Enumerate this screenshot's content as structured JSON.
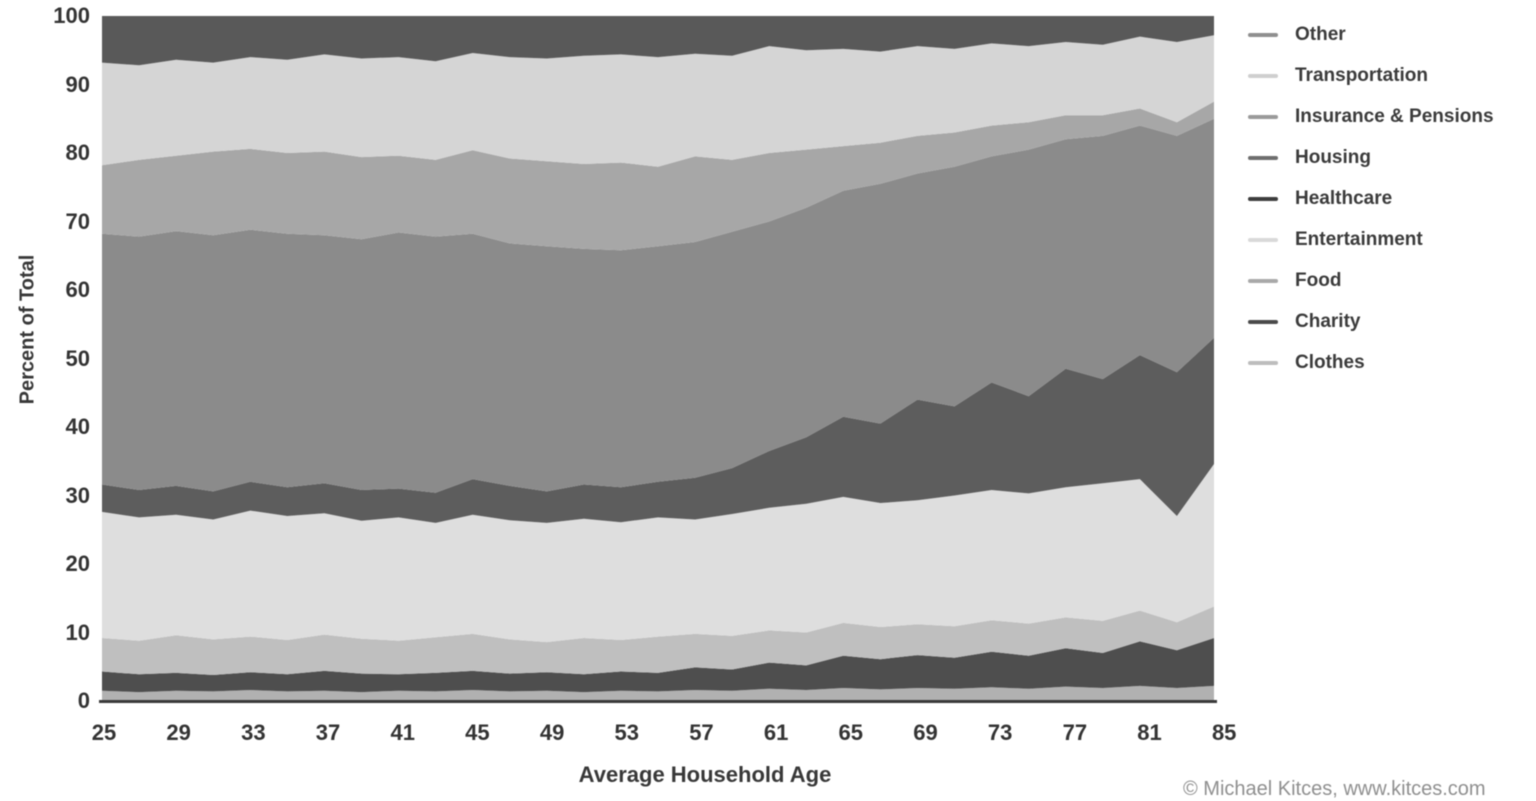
{
  "watermark": "© Michael Kitces, www.kitces.com",
  "chart_data": {
    "type": "area",
    "stacked": true,
    "title": "",
    "xlabel": "Average Household Age",
    "ylabel": "Percent of Total",
    "grid": false,
    "legend_position": "right-outside",
    "ylim": [
      0,
      100
    ],
    "xlim": [
      25,
      85
    ],
    "y_ticks": [
      0,
      10,
      20,
      30,
      40,
      50,
      60,
      70,
      80,
      90,
      100
    ],
    "x_ticks": [
      25,
      29,
      33,
      37,
      41,
      45,
      49,
      53,
      57,
      61,
      65,
      69,
      73,
      77,
      81,
      85
    ],
    "x": [
      25,
      27,
      29,
      31,
      33,
      35,
      37,
      39,
      41,
      43,
      45,
      47,
      49,
      51,
      53,
      55,
      57,
      59,
      61,
      63,
      65,
      67,
      69,
      71,
      73,
      75,
      77,
      79,
      81,
      83,
      85
    ],
    "stack_order_note": "series listed top-of-stack first (legend order); stacking drawn bottom-up in reverse order",
    "series": [
      {
        "name": "Other",
        "color": "#595959",
        "legend_color": "#8f8f8f",
        "values": [
          6.8,
          7.2,
          6.4,
          6.8,
          6.0,
          6.4,
          5.6,
          6.2,
          6.0,
          6.6,
          5.4,
          6.0,
          6.2,
          5.8,
          5.6,
          6.0,
          5.5,
          5.8,
          4.4,
          5.0,
          4.8,
          5.2,
          4.4,
          4.8,
          4.0,
          4.4,
          3.8,
          4.2,
          3.0,
          3.8,
          2.8
        ]
      },
      {
        "name": "Transportation",
        "color": "#d5d5d5",
        "legend_color": "#cfcfcf",
        "values": [
          15.0,
          13.8,
          14.0,
          13.0,
          13.4,
          13.6,
          14.2,
          14.4,
          14.4,
          14.4,
          14.2,
          14.8,
          15.0,
          15.8,
          15.8,
          16.0,
          15.0,
          15.2,
          15.6,
          14.5,
          14.2,
          13.3,
          13.1,
          12.2,
          12.0,
          11.1,
          10.7,
          10.3,
          10.5,
          11.7,
          9.7
        ]
      },
      {
        "name": "Insurance & Pensions",
        "color": "#a7a7a7",
        "legend_color": "#9a9a9a",
        "values": [
          10.0,
          11.2,
          11.0,
          12.2,
          11.8,
          11.8,
          12.2,
          12.0,
          11.2,
          11.2,
          12.2,
          12.4,
          12.4,
          12.4,
          12.8,
          11.6,
          12.5,
          10.5,
          10.0,
          8.5,
          6.5,
          6.0,
          5.5,
          5.0,
          4.5,
          4.0,
          3.5,
          3.0,
          2.5,
          2.0,
          2.5
        ]
      },
      {
        "name": "Housing",
        "color": "#8b8b8b",
        "legend_color": "#6e6e6e",
        "values": [
          36.6,
          37.0,
          37.2,
          37.4,
          36.8,
          37.0,
          36.2,
          36.6,
          37.4,
          37.4,
          35.8,
          35.4,
          35.8,
          34.4,
          34.6,
          34.4,
          34.4,
          34.5,
          33.5,
          33.5,
          33.0,
          35.0,
          33.0,
          35.0,
          33.0,
          36.0,
          33.5,
          35.5,
          33.5,
          34.5,
          32.0
        ]
      },
      {
        "name": "Healthcare",
        "color": "#5d5d5d",
        "legend_color": "#3d3d3d",
        "values": [
          4.0,
          4.0,
          4.2,
          4.1,
          4.2,
          4.2,
          4.4,
          4.5,
          4.2,
          4.4,
          5.2,
          5.0,
          4.6,
          5.0,
          5.1,
          5.2,
          6.1,
          6.7,
          8.3,
          9.7,
          11.7,
          11.6,
          14.7,
          13.0,
          15.7,
          14.2,
          17.3,
          15.2,
          18.1,
          21.0,
          18.4
        ]
      },
      {
        "name": "Entertainment",
        "color": "#dedede",
        "legend_color": "#d9d9d9",
        "values": [
          18.4,
          18.0,
          17.6,
          17.5,
          18.4,
          18.1,
          17.7,
          17.2,
          18.0,
          16.7,
          17.4,
          17.4,
          17.4,
          17.4,
          17.2,
          17.4,
          16.7,
          17.8,
          17.9,
          18.8,
          18.4,
          18.1,
          18.1,
          19.1,
          19.0,
          19.0,
          19.0,
          20.1,
          19.2,
          15.5,
          20.8
        ]
      },
      {
        "name": "Food",
        "color": "#bfbfbf",
        "legend_color": "#a9a9a9",
        "values": [
          4.9,
          4.9,
          5.5,
          5.2,
          5.2,
          5.0,
          5.3,
          5.1,
          4.9,
          5.2,
          5.4,
          5.0,
          4.4,
          5.3,
          4.6,
          5.3,
          4.9,
          4.9,
          4.7,
          4.8,
          4.8,
          4.7,
          4.5,
          4.6,
          4.6,
          4.7,
          4.5,
          4.7,
          4.5,
          4.1,
          4.6
        ]
      },
      {
        "name": "Charity",
        "color": "#4e4e4e",
        "legend_color": "#4a4a4a",
        "values": [
          2.8,
          2.6,
          2.6,
          2.4,
          2.6,
          2.5,
          2.9,
          2.7,
          2.4,
          2.7,
          2.8,
          2.6,
          2.7,
          2.6,
          2.8,
          2.7,
          3.3,
          3.1,
          3.8,
          3.6,
          4.7,
          4.4,
          4.8,
          4.5,
          5.2,
          4.8,
          5.6,
          5.1,
          6.5,
          5.5,
          7.0
        ]
      },
      {
        "name": "Clothes",
        "color": "#b1b1b1",
        "legend_color": "#bdbdbd",
        "values": [
          1.5,
          1.3,
          1.5,
          1.4,
          1.6,
          1.4,
          1.5,
          1.3,
          1.5,
          1.4,
          1.6,
          1.4,
          1.5,
          1.3,
          1.5,
          1.4,
          1.6,
          1.5,
          1.8,
          1.6,
          1.9,
          1.7,
          1.9,
          1.8,
          2.0,
          1.8,
          2.1,
          1.9,
          2.2,
          1.9,
          2.2
        ]
      }
    ]
  }
}
